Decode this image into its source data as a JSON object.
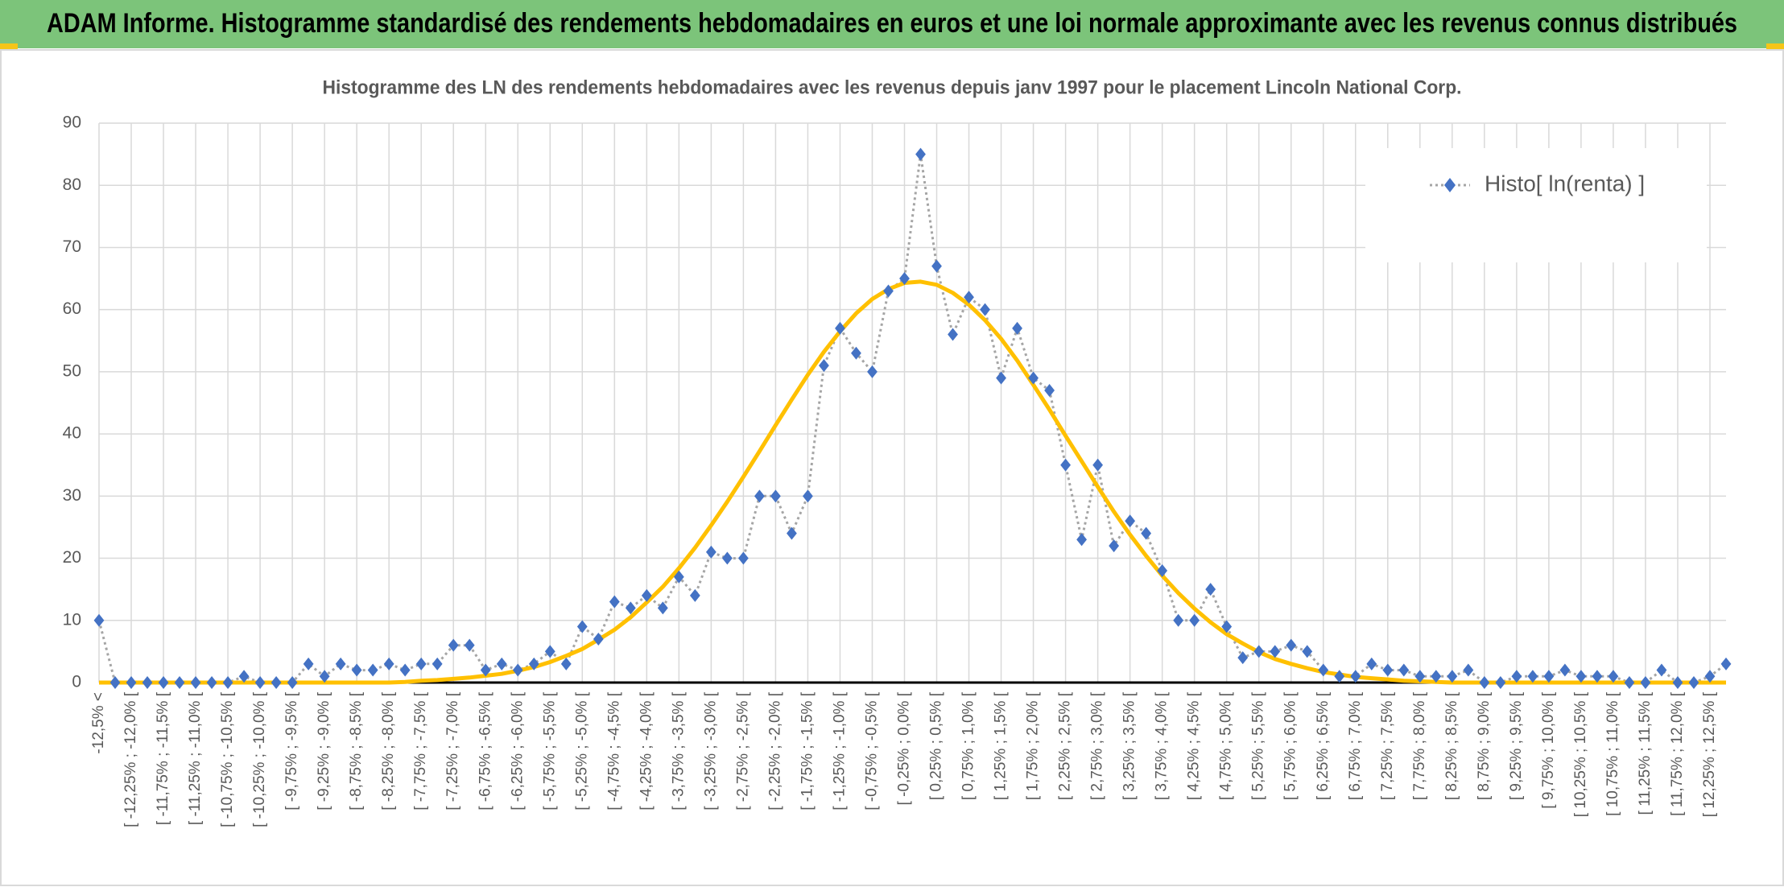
{
  "header": {
    "title": "ADAM Informe. Histogramme standardisé des rendements hebdomadaires en euros et une loi normale approximante avec les revenus connus distribués"
  },
  "chart_data": {
    "type": "line",
    "title": "Histogramme des LN des rendements hebdomadaires avec les revenus depuis janv 1997 pour le placement Lincoln National Corp.",
    "categories": [
      "-12,5% <",
      null,
      "[ -12,25% ; -12,0% [",
      null,
      "[ -11,75% ; -11,5% [",
      null,
      "[ -11,25% ; -11,0% [",
      null,
      "[ -10,75% ; -10,5% [",
      null,
      "[ -10,25% ; -10,0% [",
      null,
      "[ -9,75% ; -9,5% [",
      null,
      "[ -9,25% ; -9,0% [",
      null,
      "[ -8,75% ; -8,5% [",
      null,
      "[ -8,25% ; -8,0% [",
      null,
      "[ -7,75% ; -7,5% [",
      null,
      "[ -7,25% ; -7,0% [",
      null,
      "[ -6,75% ; -6,5% [",
      null,
      "[ -6,25% ; -6,0% [",
      null,
      "[ -5,75% ; -5,5% [",
      null,
      "[ -5,25% ; -5,0% [",
      null,
      "[ -4,75% ; -4,5% [",
      null,
      "[ -4,25% ; -4,0% [",
      null,
      "[ -3,75% ; -3,5% [",
      null,
      "[ -3,25% ; -3,0% [",
      null,
      "[ -2,75% ; -2,5% [",
      null,
      "[ -2,25% ; -2,0% [",
      null,
      "[ -1,75% ; -1,5% [",
      null,
      "[ -1,25% ; -1,0% [",
      null,
      "[ -0,75% ; -0,5% [",
      null,
      "[ -0,25% ; 0,0% [",
      null,
      "[ 0,25% ; 0,5% [",
      null,
      "[ 0,75% ; 1,0% [",
      null,
      "[ 1,25% ; 1,5% [",
      null,
      "[ 1,75% ; 2,0% [",
      null,
      "[ 2,25% ; 2,5% [",
      null,
      "[ 2,75% ; 3,0% [",
      null,
      "[ 3,25% ; 3,5% [",
      null,
      "[ 3,75% ; 4,0% [",
      null,
      "[ 4,25% ; 4,5% [",
      null,
      "[ 4,75% ; 5,0% [",
      null,
      "[ 5,25% ; 5,5% [",
      null,
      "[ 5,75% ; 6,0% [",
      null,
      "[ 6,25% ; 6,5% [",
      null,
      "[ 6,75% ; 7,0% [",
      null,
      "[ 7,25% ; 7,5% [",
      null,
      "[ 7,75% ; 8,0% [",
      null,
      "[ 8,25% ; 8,5% [",
      null,
      "[ 8,75% ; 9,0% [",
      null,
      "[ 9,25% ; 9,5% [",
      null,
      "[ 9,75% ; 10,0% [",
      null,
      "[ 10,25% ; 10,5% [",
      null,
      "[ 10,75% ; 11,0% [",
      null,
      "[ 11,25% ; 11,5% [",
      null,
      "[ 11,75% ; 12,0% [",
      null,
      "[ 12,25% ; 12,5% [",
      null
    ],
    "series": [
      {
        "name": "Histo[ ln(renta) ]",
        "color": "#4472c4",
        "line_color": "#a5a5a5",
        "values": [
          10,
          0,
          0,
          0,
          0,
          0,
          0,
          0,
          0,
          1,
          0,
          0,
          0,
          3,
          1,
          3,
          2,
          2,
          3,
          2,
          3,
          3,
          6,
          6,
          2,
          3,
          2,
          3,
          5,
          3,
          9,
          7,
          13,
          12,
          14,
          12,
          17,
          14,
          21,
          20,
          20,
          30,
          30,
          24,
          30,
          51,
          57,
          53,
          50,
          63,
          65,
          85,
          67,
          56,
          62,
          60,
          49,
          57,
          49,
          47,
          35,
          23,
          35,
          22,
          26,
          24,
          18,
          10,
          10,
          15,
          9,
          4,
          5,
          5,
          6,
          5,
          2,
          1,
          1,
          3,
          2,
          2,
          1,
          1,
          1,
          2,
          0,
          0,
          1,
          1,
          1,
          2,
          1,
          1,
          1,
          0,
          0,
          2,
          0,
          0,
          1,
          3
        ]
      },
      {
        "color": "#ffc000",
        "values": [
          0,
          0,
          0,
          0,
          0,
          0,
          0,
          0,
          0,
          0,
          0,
          0,
          0,
          0,
          0,
          0,
          0,
          0,
          0,
          0.1,
          0.3,
          0.4,
          0.6,
          0.8,
          1.1,
          1.4,
          1.9,
          2.5,
          3.3,
          4.3,
          5.4,
          6.9,
          8.5,
          10.5,
          12.9,
          15.4,
          18.4,
          21.7,
          25.3,
          29.1,
          33.1,
          37.2,
          41.4,
          45.5,
          49.5,
          53.2,
          56.5,
          59.4,
          61.7,
          63.3,
          64.3,
          64.5,
          64.0,
          62.7,
          60.8,
          58.3,
          55.3,
          51.8,
          47.9,
          43.9,
          39.7,
          35.6,
          31.5,
          27.5,
          23.8,
          20.4,
          17.2,
          14.4,
          11.9,
          9.7,
          7.8,
          6.3,
          4.9,
          3.8,
          3.0,
          2.3,
          1.7,
          1.3,
          0.9,
          0.7,
          0.5,
          0.3,
          0.2,
          0.1,
          0,
          0,
          0,
          0,
          0,
          0,
          0,
          0,
          0,
          0,
          0,
          0,
          0,
          0,
          0,
          0,
          0,
          0
        ]
      }
    ],
    "ylim": [
      0,
      90
    ],
    "yticks": [
      0,
      10,
      20,
      30,
      40,
      50,
      60,
      70,
      80,
      90
    ],
    "grid": true,
    "legend": "top-right"
  }
}
